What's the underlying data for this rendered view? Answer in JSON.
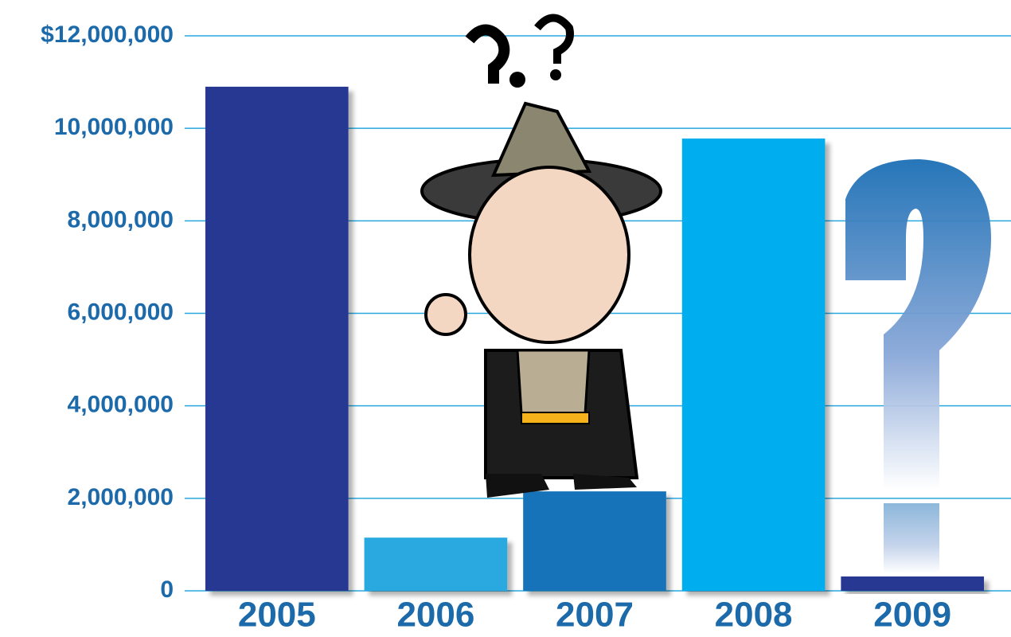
{
  "chart_data": {
    "type": "bar",
    "categories": [
      "2005",
      "2006",
      "2007",
      "2008",
      "2009"
    ],
    "values": [
      10900000,
      1150000,
      2150000,
      9780000,
      310000
    ],
    "colors": [
      "#283891",
      "#29a8e0",
      "#1672b9",
      "#00aeef",
      "#283891"
    ],
    "ylim": [
      0,
      12000000
    ],
    "yticks": [
      0,
      {
        "value": 2000000,
        "label": "2,000,000"
      },
      {
        "value": 4000000,
        "label": "4,000,000"
      },
      {
        "value": 6000000,
        "label": "6,000,000"
      },
      {
        "value": 8000000,
        "label": "8,000,000"
      },
      {
        "value": 10000000,
        "label": "10,000,000"
      },
      {
        "value": 12000000,
        "label": "$12,000,000"
      }
    ],
    "grid": true
  }
}
